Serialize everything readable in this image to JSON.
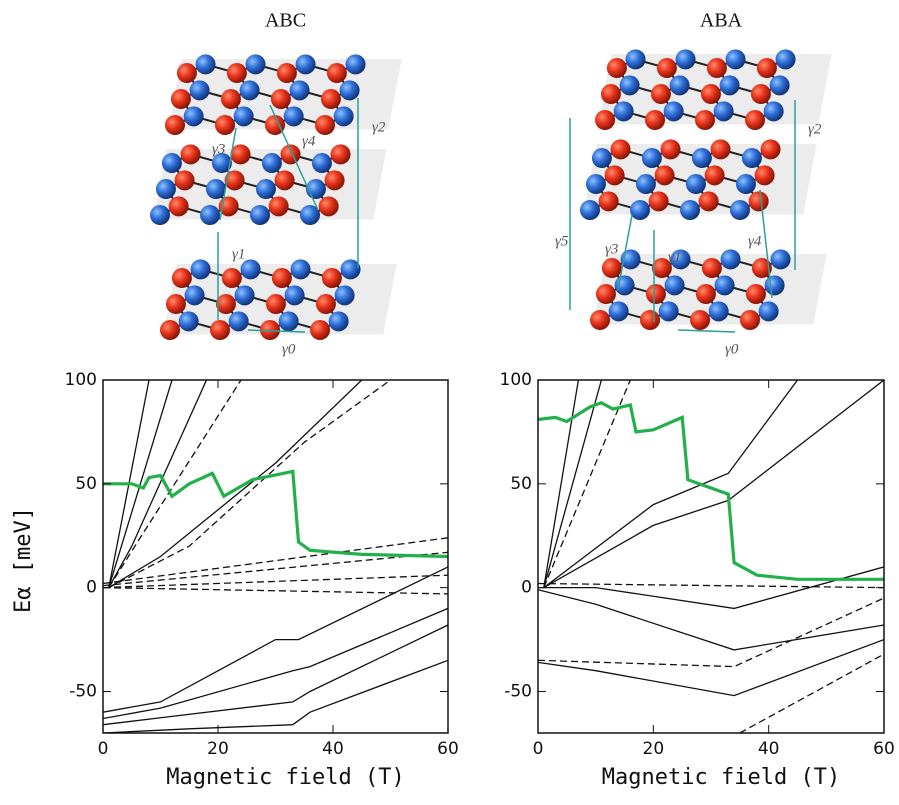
{
  "chart_data": [
    {
      "type": "line",
      "title": "ABC",
      "xlabel": "Magnetic field (T)",
      "ylabel": "Eα [meV]",
      "annotations": [
        "γ3",
        "γ4",
        "γ2",
        "γ1",
        "γ0"
      ],
      "xlim": [
        0,
        60
      ],
      "xticks": [
        0,
        20,
        40,
        60
      ],
      "ylim": [
        -70,
        100
      ],
      "yticks": [
        -50,
        0,
        50,
        100
      ],
      "series": [
        {
          "color": "#111111",
          "dash": false,
          "x": [
            1,
            8
          ],
          "values": [
            0,
            100
          ]
        },
        {
          "color": "#111111",
          "dash": false,
          "x": [
            1,
            12
          ],
          "values": [
            0,
            100
          ]
        },
        {
          "color": "#111111",
          "dash": false,
          "x": [
            1,
            5,
            18
          ],
          "values": [
            0,
            20,
            100
          ]
        },
        {
          "color": "#111111",
          "dash": true,
          "x": [
            1,
            6,
            24
          ],
          "values": [
            0,
            22,
            100
          ]
        },
        {
          "color": "#111111",
          "dash": false,
          "x": [
            1,
            10,
            30,
            45
          ],
          "values": [
            0,
            15,
            60,
            100
          ]
        },
        {
          "color": "#111111",
          "dash": true,
          "x": [
            1,
            15,
            35,
            50
          ],
          "values": [
            0,
            20,
            70,
            100
          ]
        },
        {
          "color": "#111111",
          "dash": true,
          "x": [
            0,
            60
          ],
          "values": [
            2,
            24
          ]
        },
        {
          "color": "#111111",
          "dash": true,
          "x": [
            0,
            60
          ],
          "values": [
            1,
            17
          ]
        },
        {
          "color": "#111111",
          "dash": true,
          "x": [
            0,
            60
          ],
          "values": [
            0,
            6
          ]
        },
        {
          "color": "#111111",
          "dash": true,
          "x": [
            0,
            60
          ],
          "values": [
            0,
            -3
          ]
        },
        {
          "color": "#111111",
          "dash": false,
          "x": [
            0,
            10,
            30,
            34,
            60
          ],
          "values": [
            -60,
            -55,
            -25,
            -25,
            10
          ]
        },
        {
          "color": "#111111",
          "dash": false,
          "x": [
            0,
            10,
            33,
            36,
            60
          ],
          "values": [
            -63,
            -58,
            -40,
            -38,
            -10
          ]
        },
        {
          "color": "#111111",
          "dash": false,
          "x": [
            0,
            12,
            33,
            36,
            60
          ],
          "values": [
            -66,
            -62,
            -55,
            -50,
            -18
          ]
        },
        {
          "color": "#111111",
          "dash": false,
          "x": [
            0,
            15,
            33,
            36,
            60
          ],
          "values": [
            -70,
            -68,
            -66,
            -60,
            -35
          ]
        },
        {
          "color": "#22b04b",
          "dash": false,
          "x": [
            0,
            5,
            7,
            8,
            10,
            12,
            15,
            19,
            21,
            26,
            33,
            34,
            36,
            45,
            60
          ],
          "values": [
            50,
            50,
            48,
            53,
            54,
            44,
            50,
            55,
            44,
            52,
            56,
            22,
            18,
            16,
            15
          ]
        }
      ]
    },
    {
      "type": "line",
      "title": "ABA",
      "xlabel": "Magnetic field (T)",
      "annotations": [
        "γ2",
        "γ5",
        "γ3",
        "γ1",
        "γ4",
        "γ0"
      ],
      "xlim": [
        0,
        60
      ],
      "xticks": [
        0,
        20,
        40,
        60
      ],
      "ylim": [
        -70,
        100
      ],
      "yticks": [
        -50,
        0,
        50,
        100
      ],
      "series": [
        {
          "color": "#111111",
          "dash": false,
          "x": [
            1,
            7
          ],
          "values": [
            0,
            100
          ]
        },
        {
          "color": "#111111",
          "dash": false,
          "x": [
            1,
            11
          ],
          "values": [
            0,
            100
          ]
        },
        {
          "color": "#111111",
          "dash": true,
          "x": [
            1,
            16
          ],
          "values": [
            0,
            100
          ]
        },
        {
          "color": "#111111",
          "dash": false,
          "x": [
            1,
            20,
            33,
            45
          ],
          "values": [
            0,
            40,
            55,
            100
          ]
        },
        {
          "color": "#111111",
          "dash": false,
          "x": [
            1,
            20,
            33,
            60
          ],
          "values": [
            0,
            30,
            42,
            100
          ]
        },
        {
          "color": "#111111",
          "dash": true,
          "x": [
            0,
            60
          ],
          "values": [
            2,
            0
          ]
        },
        {
          "color": "#111111",
          "dash": false,
          "x": [
            0,
            10,
            34,
            60
          ],
          "values": [
            0,
            0,
            -10,
            10
          ]
        },
        {
          "color": "#111111",
          "dash": false,
          "x": [
            0,
            10,
            34,
            60
          ],
          "values": [
            -1,
            -8,
            -30,
            -18
          ]
        },
        {
          "color": "#111111",
          "dash": true,
          "x": [
            0,
            34,
            60
          ],
          "values": [
            -35,
            -38,
            -5
          ]
        },
        {
          "color": "#111111",
          "dash": false,
          "x": [
            0,
            10,
            34,
            60
          ],
          "values": [
            -36,
            -40,
            -52,
            -25
          ]
        },
        {
          "color": "#111111",
          "dash": true,
          "x": [
            35,
            60
          ],
          "values": [
            -70,
            -32
          ]
        },
        {
          "color": "#22b04b",
          "dash": false,
          "x": [
            0,
            3,
            5,
            9,
            11,
            13,
            16,
            17,
            20,
            25,
            26,
            33,
            34,
            38,
            45,
            60
          ],
          "values": [
            81,
            82,
            80,
            87,
            89,
            86,
            88,
            75,
            76,
            82,
            52,
            45,
            12,
            6,
            4,
            4
          ]
        }
      ]
    }
  ]
}
